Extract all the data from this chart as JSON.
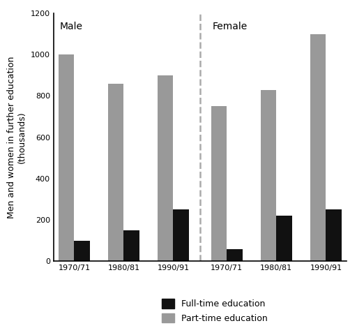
{
  "male_fulltime": [
    100,
    150,
    250
  ],
  "male_parttime": [
    1000,
    860,
    900
  ],
  "female_fulltime": [
    60,
    220,
    250
  ],
  "female_parttime": [
    750,
    830,
    1100
  ],
  "periods": [
    "1970/71",
    "1980/81",
    "1990/91"
  ],
  "ylabel": "Men and women in further education\n(thousands)",
  "ylim": [
    0,
    1200
  ],
  "yticks": [
    0,
    200,
    400,
    600,
    800,
    1000,
    1200
  ],
  "bar_color_fulltime": "#111111",
  "bar_color_parttime": "#999999",
  "male_label": "Male",
  "female_label": "Female",
  "legend_fulltime": "Full-time education",
  "legend_parttime": "Part-time education",
  "background_color": "#ffffff",
  "bar_width": 0.38,
  "dashed_color": "#aaaaaa",
  "male_label_fontsize": 10,
  "female_label_fontsize": 10,
  "tick_fontsize": 8,
  "ylabel_fontsize": 9,
  "legend_fontsize": 9
}
